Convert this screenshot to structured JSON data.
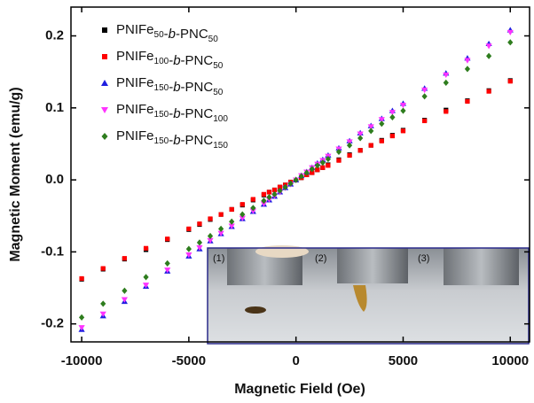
{
  "chart_data": {
    "type": "scatter",
    "xlabel": "Magnetic Field (Oe)",
    "ylabel": "Magnetic Moment (emu/g)",
    "x": [
      -10000,
      -9000,
      -8000,
      -7000,
      -6000,
      -5000,
      -4500,
      -4000,
      -3500,
      -3000,
      -2500,
      -2000,
      -1500,
      -1250,
      -1000,
      -750,
      -500,
      -250,
      0,
      250,
      500,
      750,
      1000,
      1250,
      1500,
      2000,
      2500,
      3000,
      3500,
      4000,
      4500,
      5000,
      6000,
      7000,
      8000,
      9000,
      10000
    ],
    "series": [
      {
        "name": "PNIFe50-b-PNC50",
        "color": "#000000",
        "marker": "square",
        "values": [
          -0.138,
          -0.124,
          -0.11,
          -0.097,
          -0.083,
          -0.069,
          -0.062,
          -0.055,
          -0.048,
          -0.041,
          -0.035,
          -0.028,
          -0.021,
          -0.017,
          -0.014,
          -0.01,
          -0.007,
          -0.003,
          0,
          0.003,
          0.007,
          0.01,
          0.014,
          0.017,
          0.021,
          0.028,
          0.035,
          0.041,
          0.048,
          0.055,
          0.062,
          0.069,
          0.083,
          0.097,
          0.11,
          0.124,
          0.138
        ]
      },
      {
        "name": "PNIFe100-b-PNC50",
        "color": "#ff0000",
        "marker": "square",
        "values": [
          -0.137,
          -0.123,
          -0.109,
          -0.095,
          -0.082,
          -0.068,
          -0.061,
          -0.054,
          -0.048,
          -0.041,
          -0.034,
          -0.027,
          -0.02,
          -0.017,
          -0.014,
          -0.01,
          -0.007,
          -0.003,
          0,
          0.003,
          0.007,
          0.01,
          0.014,
          0.017,
          0.02,
          0.027,
          0.034,
          0.041,
          0.048,
          0.054,
          0.061,
          0.068,
          0.082,
          0.095,
          0.109,
          0.123,
          0.137
        ]
      },
      {
        "name": "PNIFe150-b-PNC50",
        "color": "#1f1fe0",
        "marker": "triangle-up",
        "values": [
          -0.208,
          -0.189,
          -0.169,
          -0.148,
          -0.127,
          -0.106,
          -0.096,
          -0.085,
          -0.075,
          -0.065,
          -0.054,
          -0.044,
          -0.034,
          -0.028,
          -0.023,
          -0.017,
          -0.011,
          -0.006,
          0,
          0.006,
          0.011,
          0.017,
          0.023,
          0.028,
          0.034,
          0.044,
          0.054,
          0.065,
          0.075,
          0.085,
          0.096,
          0.106,
          0.127,
          0.148,
          0.169,
          0.189,
          0.208
        ]
      },
      {
        "name": "PNIFe150-b-PNC100",
        "color": "#ff33ff",
        "marker": "triangle-down",
        "values": [
          -0.205,
          -0.186,
          -0.166,
          -0.146,
          -0.125,
          -0.104,
          -0.094,
          -0.084,
          -0.074,
          -0.064,
          -0.053,
          -0.043,
          -0.033,
          -0.027,
          -0.022,
          -0.017,
          -0.011,
          -0.006,
          0,
          0.006,
          0.011,
          0.017,
          0.022,
          0.027,
          0.033,
          0.043,
          0.053,
          0.064,
          0.074,
          0.084,
          0.094,
          0.104,
          0.125,
          0.146,
          0.166,
          0.186,
          0.205
        ]
      },
      {
        "name": "PNIFe150-b-PNC150",
        "color": "#2e7d1e",
        "marker": "diamond",
        "values": [
          -0.191,
          -0.172,
          -0.154,
          -0.135,
          -0.116,
          -0.096,
          -0.087,
          -0.078,
          -0.068,
          -0.058,
          -0.048,
          -0.039,
          -0.029,
          -0.024,
          -0.02,
          -0.015,
          -0.01,
          -0.005,
          0,
          0.005,
          0.01,
          0.015,
          0.02,
          0.024,
          0.029,
          0.039,
          0.048,
          0.058,
          0.068,
          0.078,
          0.087,
          0.096,
          0.116,
          0.135,
          0.154,
          0.172,
          0.191
        ]
      }
    ],
    "xlim": [
      -10500,
      10900
    ],
    "xticks": [
      -10000,
      -5000,
      0,
      5000,
      10000
    ],
    "ylim": [
      -0.225,
      0.24
    ],
    "yticks": [
      -0.2,
      -0.1,
      {
        "value": 0,
        "label": "0.0"
      },
      0.1,
      0.2
    ],
    "legend": "upper left",
    "inset": {
      "labels": [
        "(1)",
        "(2)",
        "(3)"
      ]
    }
  }
}
